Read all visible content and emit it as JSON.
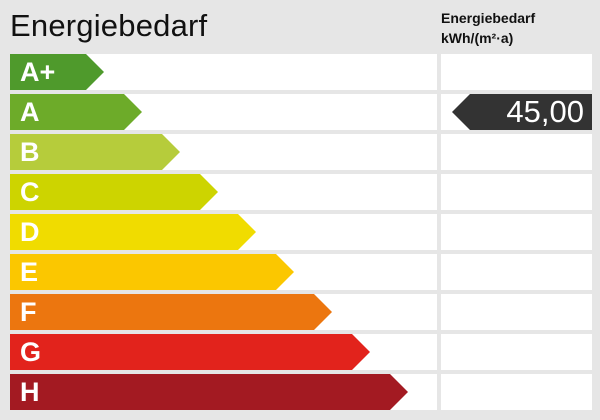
{
  "title": "Energiebedarf",
  "unit_label": {
    "line1": "Energiebedarf",
    "line2": "kWh/(m²·a)"
  },
  "chart_data": {
    "type": "bar",
    "title": "Energiebedarf",
    "categories": [
      "A+",
      "A",
      "B",
      "C",
      "D",
      "E",
      "F",
      "G",
      "H"
    ],
    "colors": [
      "#4f9a2c",
      "#6dab29",
      "#b6cc3b",
      "#cdd400",
      "#f0dc00",
      "#fbc700",
      "#ec760f",
      "#e2231c",
      "#a31a22"
    ],
    "value": "45,00",
    "value_class": "A",
    "marker_color": "#333333"
  }
}
